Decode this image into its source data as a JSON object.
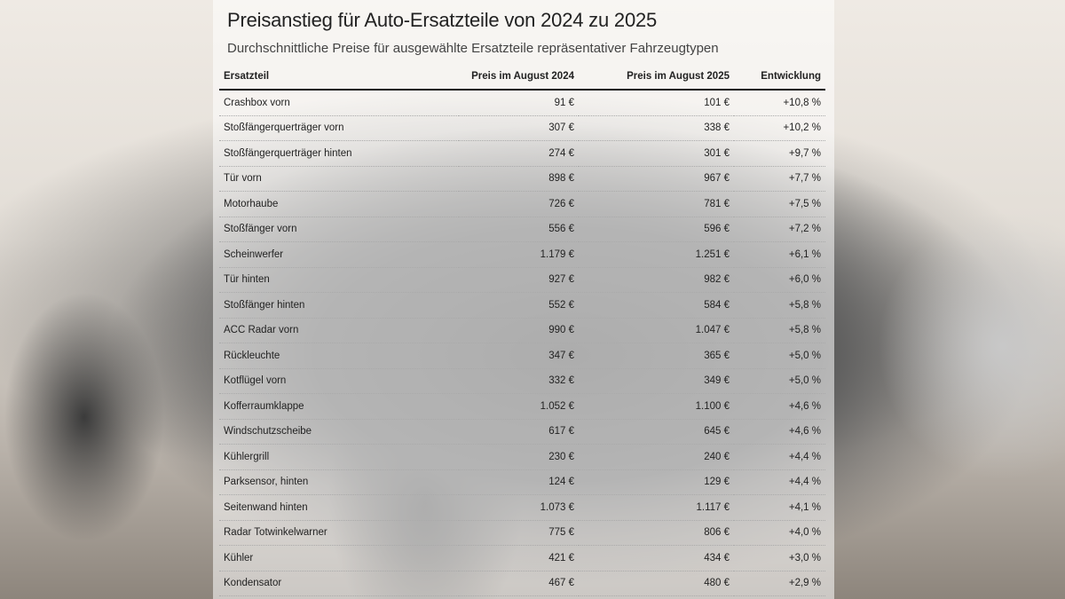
{
  "title": "Preisanstieg für Auto-Ersatzteile von 2024 zu 2025",
  "subtitle": "Durchschnittliche Preise für ausgewählte Ersatzteile repräsentativer Fahrzeugtypen",
  "table": {
    "headers": [
      "Ersatzteil",
      "Preis im August 2024",
      "Preis im August 2025",
      "Entwicklung"
    ],
    "rows": [
      [
        "Crashbox vorn",
        "91 €",
        "101 €",
        "+10,8 %"
      ],
      [
        "Stoßfängerquerträger vorn",
        "307 €",
        "338 €",
        "+10,2 %"
      ],
      [
        "Stoßfängerquerträger hinten",
        "274 €",
        "301 €",
        "+9,7 %"
      ],
      [
        "Tür vorn",
        "898 €",
        "967 €",
        "+7,7 %"
      ],
      [
        "Motorhaube",
        "726 €",
        "781 €",
        "+7,5 %"
      ],
      [
        "Stoßfänger vorn",
        "556 €",
        "596 €",
        "+7,2 %"
      ],
      [
        "Scheinwerfer",
        "1.179 €",
        "1.251 €",
        "+6,1 %"
      ],
      [
        "Tür hinten",
        "927 €",
        "982 €",
        "+6,0 %"
      ],
      [
        "Stoßfänger hinten",
        "552 €",
        "584 €",
        "+5,8 %"
      ],
      [
        "ACC Radar vorn",
        "990 €",
        "1.047 €",
        "+5,8 %"
      ],
      [
        "Rückleuchte",
        "347 €",
        "365 €",
        "+5,0 %"
      ],
      [
        "Kotflügel vorn",
        "332 €",
        "349 €",
        "+5,0 %"
      ],
      [
        "Kofferraumklappe",
        "1.052 €",
        "1.100 €",
        "+4,6 %"
      ],
      [
        "Windschutzscheibe",
        "617 €",
        "645 €",
        "+4,6 %"
      ],
      [
        "Kühlergrill",
        "230 €",
        "240 €",
        "+4,4 %"
      ],
      [
        "Parksensor, hinten",
        "124 €",
        "129 €",
        "+4,4 %"
      ],
      [
        "Seitenwand hinten",
        "1.073 €",
        "1.117 €",
        "+4,1 %"
      ],
      [
        "Radar Totwinkelwarner",
        "775 €",
        "806 €",
        "+4,0 %"
      ],
      [
        "Kühler",
        "421 €",
        "434 €",
        "+3,0 %"
      ],
      [
        "Kondensator",
        "467 €",
        "480 €",
        "+2,9 %"
      ]
    ]
  }
}
